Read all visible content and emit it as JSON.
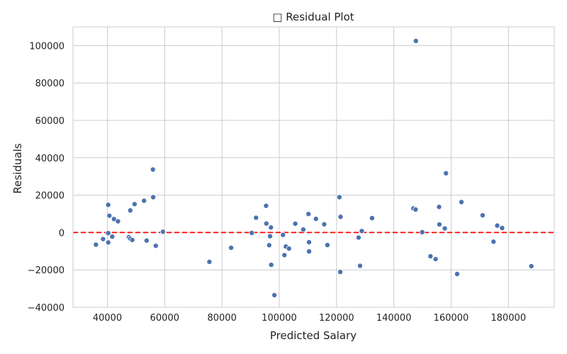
{
  "chart_data": {
    "type": "scatter",
    "title": "□ Residual Plot",
    "xlabel": "Predicted Salary",
    "ylabel": "Residuals",
    "xlim": [
      28000,
      196000
    ],
    "ylim": [
      -40000,
      110000
    ],
    "x_ticks": [
      40000,
      60000,
      80000,
      100000,
      120000,
      140000,
      160000,
      180000
    ],
    "y_ticks": [
      -40000,
      -20000,
      0,
      20000,
      40000,
      60000,
      80000,
      100000
    ],
    "x_tick_labels": [
      "40000",
      "60000",
      "80000",
      "100000",
      "120000",
      "140000",
      "160000",
      "180000"
    ],
    "y_tick_labels": [
      "−40000",
      "−20000",
      "0",
      "20000",
      "40000",
      "60000",
      "80000",
      "100000"
    ],
    "grid": true,
    "point_color": "#4c72b0",
    "reference_line": {
      "y": 0,
      "color": "#ff0000",
      "style": "dashed"
    },
    "points": [
      [
        36000,
        -6500
      ],
      [
        38500,
        -3500
      ],
      [
        40300,
        14800
      ],
      [
        40300,
        -300
      ],
      [
        40300,
        -5300
      ],
      [
        40700,
        9000
      ],
      [
        41700,
        -2200
      ],
      [
        42300,
        7200
      ],
      [
        43700,
        6000
      ],
      [
        47500,
        -2500
      ],
      [
        48000,
        11800
      ],
      [
        48000,
        -3300
      ],
      [
        48700,
        -4000
      ],
      [
        49500,
        15200
      ],
      [
        52800,
        17000
      ],
      [
        53700,
        -4300
      ],
      [
        55900,
        33700
      ],
      [
        56000,
        18900
      ],
      [
        56900,
        -7100
      ],
      [
        59400,
        400
      ],
      [
        75600,
        -15700
      ],
      [
        83200,
        -8200
      ],
      [
        90400,
        -200
      ],
      [
        91900,
        7900
      ],
      [
        95400,
        14300
      ],
      [
        95500,
        4800
      ],
      [
        96500,
        -6800
      ],
      [
        96800,
        -2000
      ],
      [
        97100,
        2700
      ],
      [
        97200,
        -17300
      ],
      [
        98300,
        -33500
      ],
      [
        101300,
        -1300
      ],
      [
        101800,
        -12100
      ],
      [
        102300,
        -7500
      ],
      [
        103400,
        -8600
      ],
      [
        105600,
        4700
      ],
      [
        108400,
        1600
      ],
      [
        110200,
        9900
      ],
      [
        110400,
        -5200
      ],
      [
        110400,
        -10100
      ],
      [
        112800,
        7300
      ],
      [
        115700,
        4400
      ],
      [
        116800,
        -6700
      ],
      [
        121000,
        18900
      ],
      [
        121300,
        -21100
      ],
      [
        121400,
        8400
      ],
      [
        127700,
        -2700
      ],
      [
        128200,
        -17800
      ],
      [
        128800,
        800
      ],
      [
        132400,
        7700
      ],
      [
        146800,
        12900
      ],
      [
        147600,
        12300
      ],
      [
        147700,
        102500
      ],
      [
        149900,
        200
      ],
      [
        152800,
        -12700
      ],
      [
        154600,
        -14200
      ],
      [
        155800,
        13700
      ],
      [
        155900,
        4300
      ],
      [
        157800,
        2200
      ],
      [
        158200,
        31700
      ],
      [
        162100,
        -22200
      ],
      [
        163600,
        16300
      ],
      [
        171000,
        9200
      ],
      [
        174800,
        -4900
      ],
      [
        176100,
        3700
      ],
      [
        177800,
        2400
      ],
      [
        188000,
        -18000
      ]
    ]
  }
}
